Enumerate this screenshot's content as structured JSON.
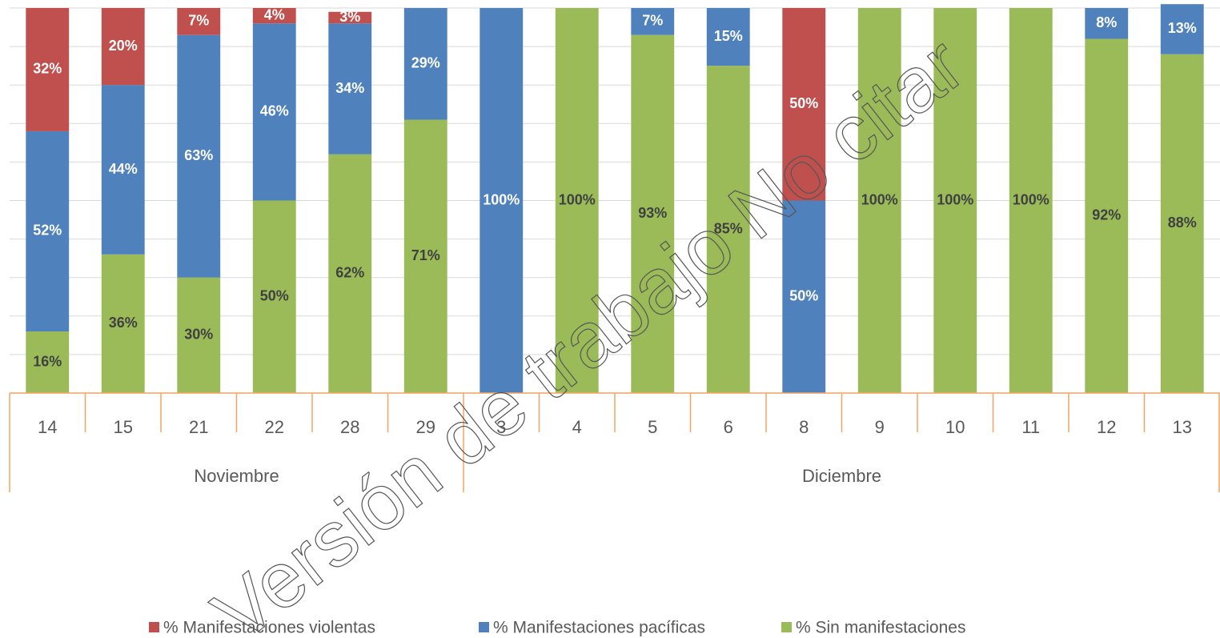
{
  "chart_data": {
    "type": "stacked_bar",
    "categories": [
      "14",
      "15",
      "21",
      "22",
      "28",
      "29",
      "3",
      "4",
      "5",
      "6",
      "8",
      "9",
      "10",
      "11",
      "12",
      "13"
    ],
    "category_groups": [
      "Noviembre",
      "Noviembre",
      "Noviembre",
      "Noviembre",
      "Noviembre",
      "Noviembre",
      "Diciembre",
      "Diciembre",
      "Diciembre",
      "Diciembre",
      "Diciembre",
      "Diciembre",
      "Diciembre",
      "Diciembre",
      "Diciembre",
      "Diciembre"
    ],
    "series": [
      {
        "name": "% Manifestaciones violentas",
        "color": "#c0504d",
        "values": [
          32,
          20,
          7,
          4,
          3,
          0,
          0,
          0,
          0,
          0,
          50,
          0,
          0,
          0,
          0,
          0
        ],
        "value_labels": [
          "32%",
          "20%",
          "7%",
          "4%",
          "3%",
          null,
          null,
          null,
          null,
          null,
          "50%",
          null,
          null,
          null,
          null,
          null
        ]
      },
      {
        "name": "% Manifestaciones pacíficas",
        "color": "#4f81bd",
        "values": [
          52,
          44,
          63,
          46,
          34,
          29,
          100,
          0,
          7,
          15,
          50,
          0,
          0,
          0,
          8,
          13
        ],
        "value_labels": [
          "52%",
          "44%",
          "63%",
          "46%",
          "34%",
          "29%",
          "100%",
          null,
          "7%",
          "15%",
          "50%",
          null,
          null,
          null,
          "8%",
          "13%"
        ]
      },
      {
        "name": "% Sin manifestaciones",
        "color": "#9bbb59",
        "values": [
          16,
          36,
          30,
          50,
          62,
          71,
          0,
          100,
          93,
          85,
          0,
          100,
          100,
          100,
          92,
          88
        ],
        "value_labels": [
          "16%",
          "36%",
          "30%",
          "50%",
          "62%",
          "71%",
          null,
          "100%",
          "93%",
          "85%",
          null,
          "100%",
          "100%",
          "100%",
          "92%",
          "88%"
        ]
      }
    ],
    "ylim": [
      0,
      100
    ],
    "yticks": [
      0,
      10,
      20,
      30,
      40,
      50,
      60,
      70,
      80,
      90,
      100
    ],
    "ytick_labels": false,
    "grid": true,
    "legend": "bottom",
    "watermark": "Versión de trabajo No citar"
  }
}
